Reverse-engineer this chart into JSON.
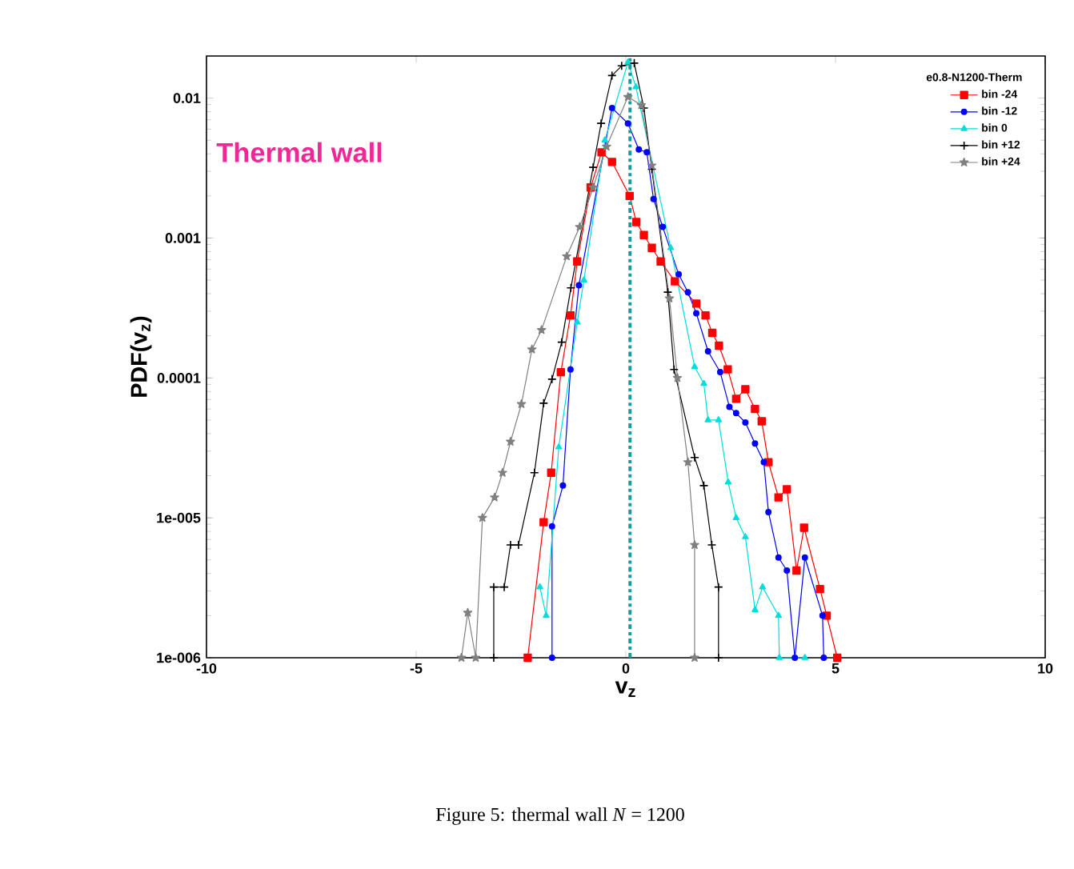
{
  "chart_data": {
    "type": "line",
    "xlabel": "v$_{z}$",
    "ylabel": "PDF(v$_{z}$)",
    "legend_title": "e0.8-N1200-Therm",
    "legend": "top right",
    "log": "y",
    "xlim": [
      -10,
      10
    ],
    "ylim": [
      1e-06,
      0.02
    ],
    "xticks": [
      -10,
      -5,
      0,
      5,
      10
    ],
    "yticks": [
      {
        "value": 1e-06,
        "label": "1e-006"
      },
      {
        "value": 1e-05,
        "label": "1e-005"
      },
      0.0001,
      0.001,
      0.01
    ],
    "annotations": [
      "Thermal wall",
      "Figure 5:  thermal wall *N* = 1200"
    ],
    "ref_lines": [
      {
        "axis": "x",
        "value": 0.1,
        "color": "#1a9a9a",
        "line_style": "dashed"
      }
    ],
    "series": [
      {
        "name": "bin -24",
        "color": "#ff0000",
        "marker": "square",
        "x": [
          -2.34,
          -1.96,
          -1.78,
          -1.55,
          -1.32,
          -1.16,
          -0.84,
          -0.58,
          -0.33,
          0.09,
          0.25,
          0.43,
          0.62,
          0.83,
          1.17,
          1.68,
          1.9,
          2.06,
          2.22,
          2.43,
          2.63,
          2.85,
          3.08,
          3.24,
          3.4,
          3.64,
          3.84,
          4.07,
          4.25,
          4.63,
          4.79,
          5.04
        ],
        "values": [
          1e-06,
          9.3e-06,
          2.1e-05,
          0.00011,
          0.00028,
          0.00068,
          0.0023,
          0.0041,
          0.0035,
          0.002,
          0.0013,
          0.00105,
          0.00085,
          0.00068,
          0.00049,
          0.00034,
          0.00028,
          0.00021,
          0.00017,
          0.000115,
          7.1e-05,
          8.3e-05,
          6e-05,
          4.9e-05,
          2.5e-05,
          1.4e-05,
          1.6e-05,
          4.2e-06,
          8.5e-06,
          3.1e-06,
          2e-06,
          1e-06
        ]
      },
      {
        "name": "bin -12",
        "color": "#0000ff",
        "marker": "circle",
        "x": [
          -1.76,
          -1.76,
          -1.5,
          -1.32,
          -1.12,
          -0.33,
          0.05,
          0.31,
          0.5,
          0.66,
          0.88,
          1.26,
          1.48,
          1.68,
          1.96,
          2.25,
          2.47,
          2.63,
          2.85,
          3.08,
          3.29,
          3.4,
          3.64,
          3.84,
          4.03,
          4.27,
          4.69,
          4.72
        ],
        "values": [
          1e-06,
          8.7e-06,
          1.7e-05,
          0.000115,
          0.00046,
          0.0085,
          0.0066,
          0.0043,
          0.0041,
          0.0019,
          0.0012,
          0.00055,
          0.00041,
          0.00029,
          0.000155,
          0.00011,
          6.2e-05,
          5.6e-05,
          4.8e-05,
          3.4e-05,
          2.5e-05,
          1.1e-05,
          5.2e-06,
          4.2e-06,
          1e-06,
          5.2e-06,
          2e-06,
          1e-06
        ]
      },
      {
        "name": "bin 0",
        "color": "#00dddd",
        "marker": "triangle",
        "x": [
          -2.05,
          -1.9,
          -1.6,
          -1.16,
          -1.0,
          -0.5,
          0.05,
          0.24,
          1.07,
          1.64,
          1.86,
          1.96,
          2.21,
          2.44,
          2.63,
          2.85,
          3.08,
          3.26,
          3.64,
          3.66,
          4.27
        ],
        "values": [
          3.2e-06,
          2e-06,
          3.2e-05,
          0.00025,
          0.0005,
          0.005,
          0.018,
          0.012,
          0.00085,
          0.00012,
          9.1e-05,
          5e-05,
          5e-05,
          1.8e-05,
          1e-05,
          7.3e-06,
          2.2e-06,
          3.2e-06,
          2e-06,
          1e-06,
          1e-06
        ]
      },
      {
        "name": "bin +12",
        "color": "#000000",
        "marker": "cross",
        "x": [
          -3.15,
          -3.15,
          -2.9,
          -2.75,
          -2.56,
          -2.18,
          -1.96,
          -1.76,
          -1.53,
          -1.31,
          -0.78,
          -0.59,
          -0.33,
          -0.1,
          0.2,
          0.43,
          0.62,
          1.0,
          1.15,
          1.64,
          1.86,
          2.05,
          2.21,
          2.21
        ],
        "values": [
          1e-06,
          3.2e-06,
          3.2e-06,
          6.4e-06,
          6.4e-06,
          2.1e-05,
          6.6e-05,
          9.8e-05,
          0.00018,
          0.00044,
          0.0032,
          0.0066,
          0.0145,
          0.017,
          0.0178,
          0.0085,
          0.0031,
          0.00041,
          0.000115,
          2.7e-05,
          1.7e-05,
          6.4e-06,
          3.2e-06,
          1e-06
        ]
      },
      {
        "name": "bin +24",
        "color": "#808080",
        "marker": "star",
        "x": [
          -3.92,
          -3.77,
          -3.58,
          -3.42,
          -3.13,
          -2.94,
          -2.75,
          -2.49,
          -2.24,
          -2.01,
          -1.41,
          -1.1,
          -0.78,
          -0.46,
          0.05,
          0.37,
          0.62,
          1.04,
          1.23,
          1.48,
          1.64,
          1.64
        ],
        "values": [
          1e-06,
          2.1e-06,
          1e-06,
          1e-05,
          1.4e-05,
          2.1e-05,
          3.5e-05,
          6.5e-05,
          0.00016,
          0.00022,
          0.00074,
          0.0012,
          0.0023,
          0.0045,
          0.0102,
          0.0089,
          0.0033,
          0.00037,
          0.0001,
          2.5e-05,
          6.4e-06,
          1e-06
        ]
      }
    ]
  }
}
